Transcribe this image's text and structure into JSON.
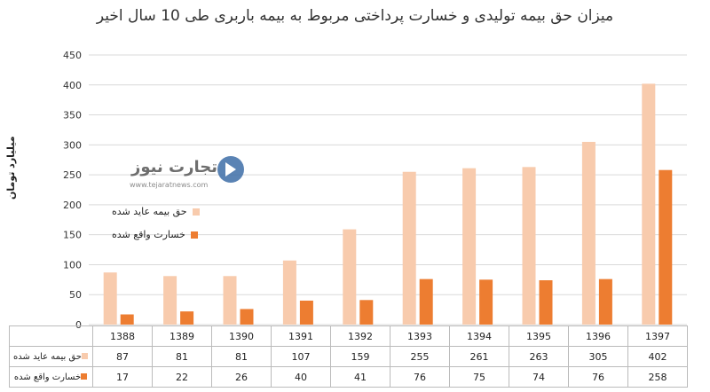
{
  "title": "میزان حق بیمه تولیدی و خسارت پرداختی مربوط به بیمه باربری طی 10 سال اخیر",
  "watermark": {
    "brand": "تجارت نیوز",
    "url": "www.tejaratnews.com"
  },
  "chart_data": {
    "type": "bar",
    "title": "میزان حق بیمه تولیدی و خسارت پرداختی مربوط به بیمه باربری طی 10 سال اخیر",
    "ylabel": "میلیارد تومان",
    "xlabel": "",
    "categories": [
      "1388",
      "1389",
      "1390",
      "1391",
      "1392",
      "1393",
      "1394",
      "1395",
      "1396",
      "1397"
    ],
    "series": [
      {
        "name": "حق بیمه عاید شده",
        "color": "#f8cbad",
        "values": [
          87,
          81,
          81,
          107,
          159,
          255,
          261,
          263,
          305,
          402
        ]
      },
      {
        "name": "خسارت واقع شده",
        "color": "#ed7d31",
        "values": [
          17,
          22,
          26,
          40,
          41,
          76,
          75,
          74,
          76,
          258
        ]
      }
    ],
    "ylim": [
      0,
      450
    ],
    "yticks": [
      "0",
      "50",
      "100",
      "150",
      "200",
      "250",
      "300",
      "350",
      "400",
      "450"
    ],
    "grid": true,
    "legend": "left-inside",
    "data_table": true
  }
}
